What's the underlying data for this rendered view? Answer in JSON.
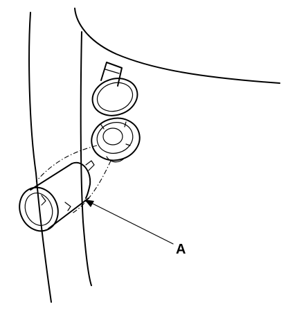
{
  "callouts": [
    {
      "id": "A",
      "label": "A"
    }
  ]
}
